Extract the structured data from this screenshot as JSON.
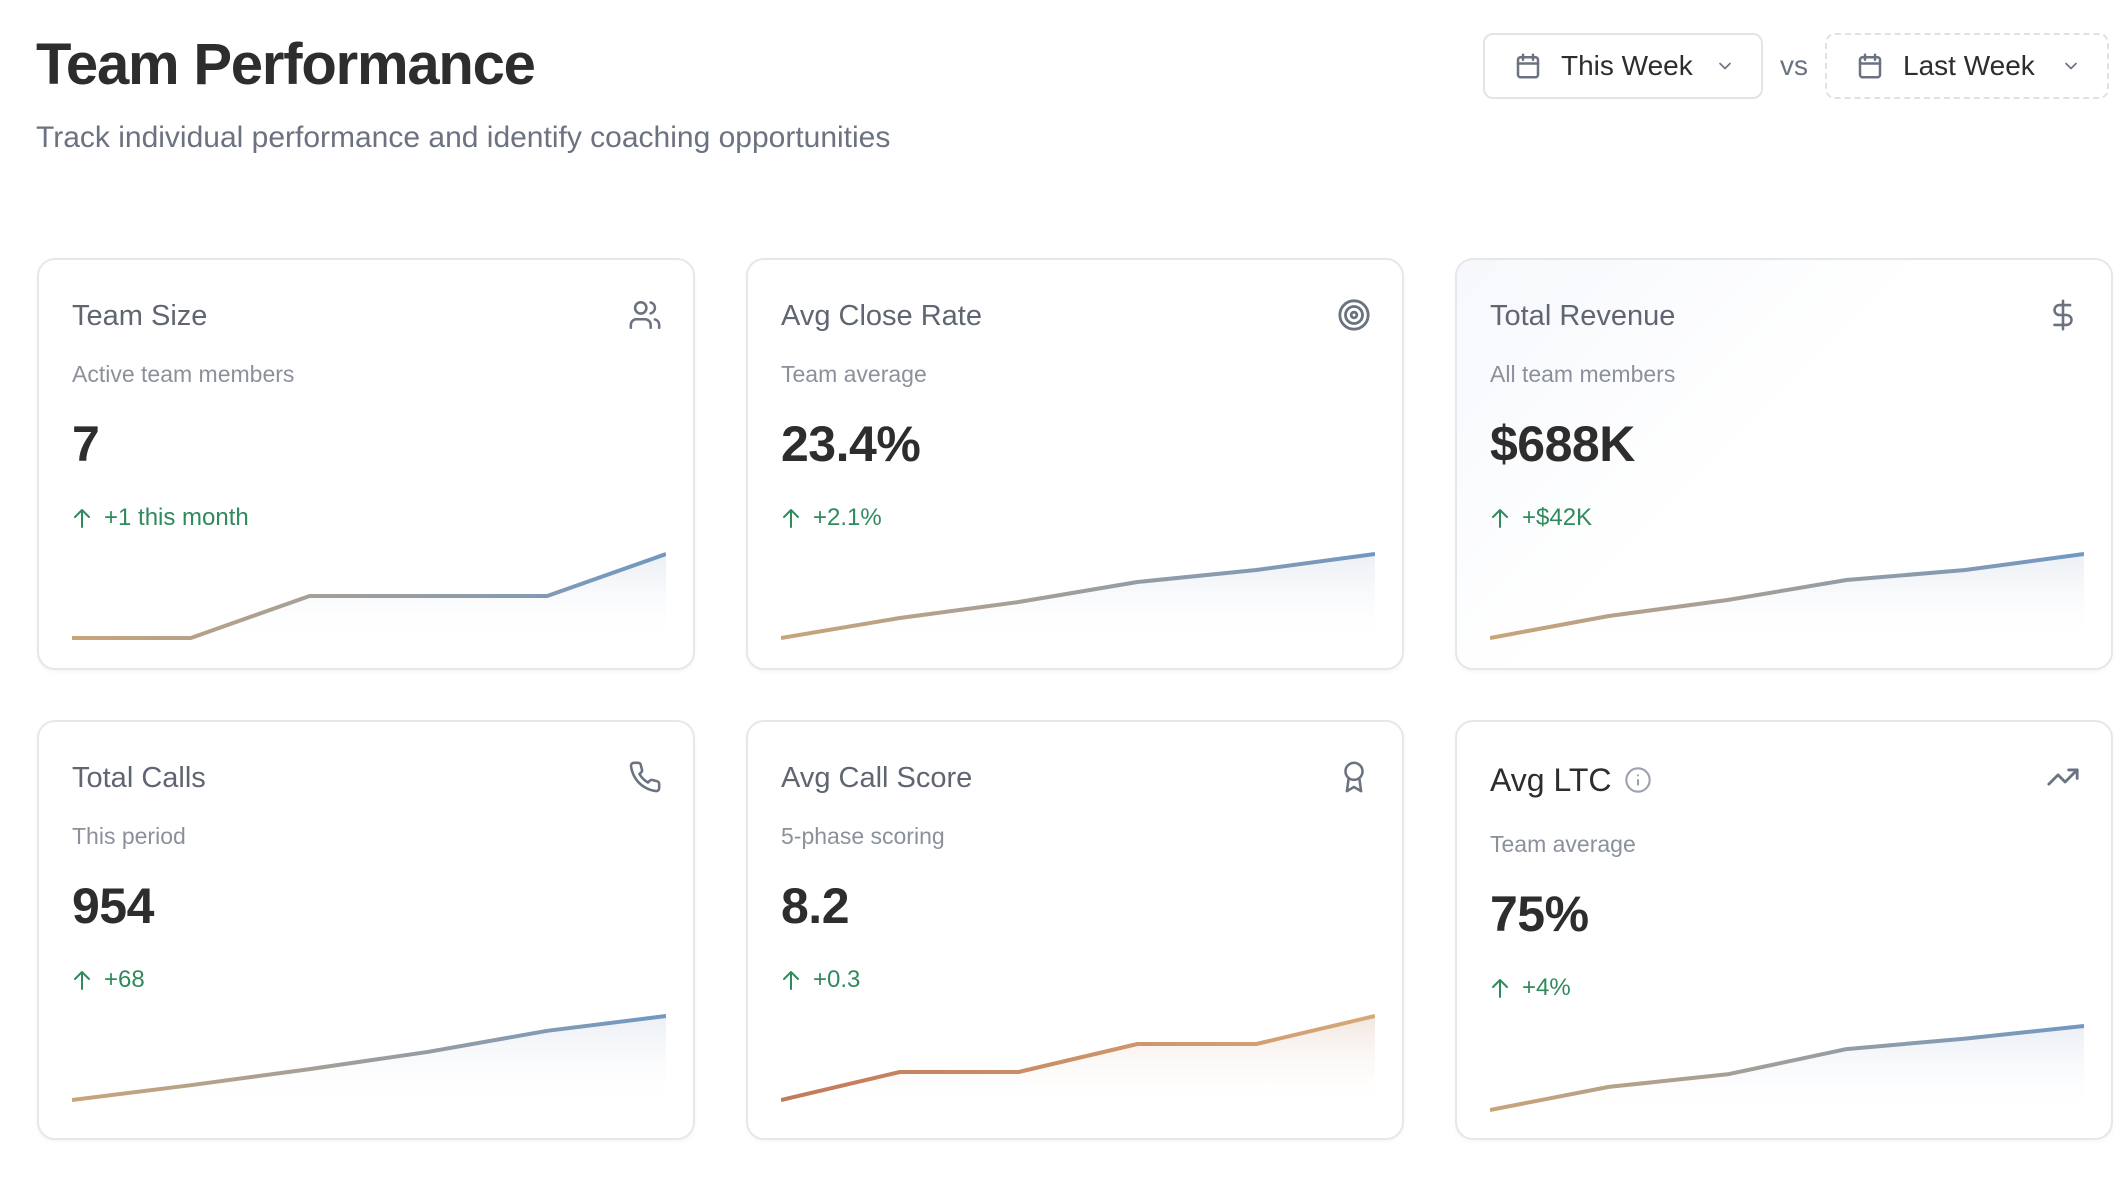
{
  "header": {
    "title": "Team Performance",
    "subtitle": "Track individual performance and identify coaching opportunities"
  },
  "controls": {
    "current_period": "This Week",
    "vs_label": "vs",
    "compare_period": "Last Week"
  },
  "colors": {
    "positive": "#2f8a5c",
    "spark_start": "#c9a479",
    "spark_end": "#7098c2",
    "spark_warm_start": "#c27a5a",
    "spark_warm_end": "#d6a878"
  },
  "cards": [
    {
      "title": "Team Size",
      "icon": "users-icon",
      "description": "Active team members",
      "value": "7",
      "delta": "+1 this month",
      "trend": "up",
      "sparkline": [
        5,
        5,
        6,
        6,
        6,
        7
      ],
      "palette": "cool"
    },
    {
      "title": "Avg Close Rate",
      "icon": "target-icon",
      "description": "Team average",
      "value": "23.4%",
      "delta": "+2.1%",
      "trend": "up",
      "sparkline": [
        21.3,
        21.8,
        22.2,
        22.7,
        23.0,
        23.4
      ],
      "palette": "cool"
    },
    {
      "title": "Total Revenue",
      "icon": "dollar-icon",
      "description": "All team members",
      "value": "$688K",
      "delta": "+$42K",
      "trend": "up",
      "sparkline": [
        646,
        657,
        665,
        675,
        680,
        688
      ],
      "palette": "cool"
    },
    {
      "title": "Total Calls",
      "icon": "phone-icon",
      "description": "This period",
      "value": "954",
      "delta": "+68",
      "trend": "up",
      "sparkline": [
        886,
        898,
        911,
        925,
        942,
        954
      ],
      "palette": "cool"
    },
    {
      "title": "Avg Call Score",
      "icon": "award-icon",
      "description": "5-phase scoring",
      "value": "8.2",
      "delta": "+0.3",
      "trend": "up",
      "sparkline": [
        7.9,
        8.0,
        8.0,
        8.1,
        8.1,
        8.2
      ],
      "palette": "warm"
    },
    {
      "title": "Avg LTC",
      "icon": "trending-up-icon",
      "info_icon": "info-icon",
      "description": "Team average",
      "value": "75%",
      "delta": "+4%",
      "trend": "up",
      "sparkline": [
        71,
        72.1,
        72.7,
        73.9,
        74.4,
        75
      ],
      "palette": "cool"
    }
  ]
}
